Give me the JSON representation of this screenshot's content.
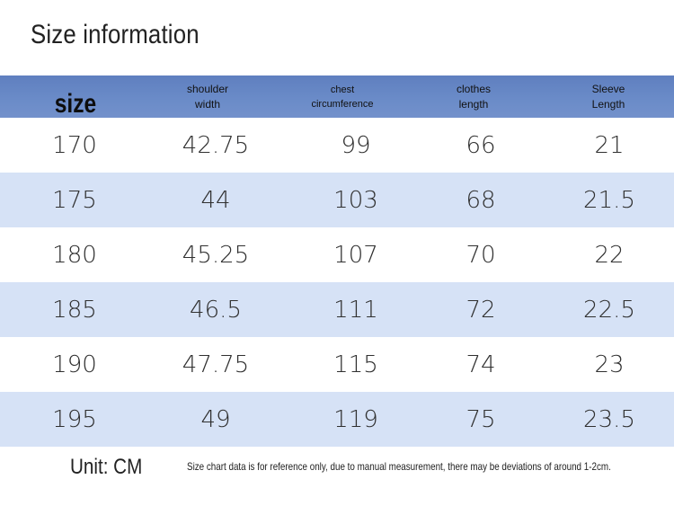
{
  "title": "Size information",
  "table": {
    "headers": [
      {
        "lines": [
          "size"
        ]
      },
      {
        "lines": [
          "shoulder",
          "width"
        ]
      },
      {
        "lines": [
          "chest",
          "circumference"
        ]
      },
      {
        "lines": [
          "clothes",
          "length"
        ]
      },
      {
        "lines": [
          "Sleeve",
          "Length"
        ]
      }
    ],
    "rows": [
      [
        "170",
        "42.75",
        "99",
        "66",
        "21"
      ],
      [
        "175",
        "44",
        "103",
        "68",
        "21.5"
      ],
      [
        "180",
        "45.25",
        "107",
        "70",
        "22"
      ],
      [
        "185",
        "46.5",
        "111",
        "72",
        "22.5"
      ],
      [
        "190",
        "47.75",
        "115",
        "74",
        "23"
      ],
      [
        "195",
        "49",
        "119",
        "75",
        "23.5"
      ]
    ]
  },
  "footer": {
    "unit": "Unit: CM",
    "note": "Size chart data is for reference only, due to manual measurement, there may be deviations of around 1-2cm."
  },
  "colors": {
    "header_bg": "#6a8bc8",
    "alt_row_bg": "#d6e2f6"
  }
}
